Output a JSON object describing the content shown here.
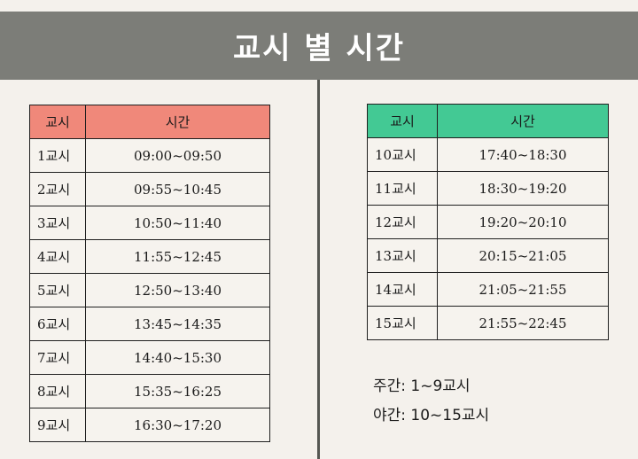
{
  "title": "교시 별 시간",
  "left_table": {
    "headers": [
      "교시",
      "시간"
    ],
    "rows": [
      {
        "period": "1교시",
        "time": "09:00~09:50"
      },
      {
        "period": "2교시",
        "time": "09:55~10:45"
      },
      {
        "period": "3교시",
        "time": "10:50~11:40"
      },
      {
        "period": "4교시",
        "time": "11:55~12:45"
      },
      {
        "period": "5교시",
        "time": "12:50~13:40"
      },
      {
        "period": "6교시",
        "time": "13:45~14:35"
      },
      {
        "period": "7교시",
        "time": "14:40~15:30"
      },
      {
        "period": "8교시",
        "time": "15:35~16:25"
      },
      {
        "period": "9교시",
        "time": "16:30~17:20"
      }
    ]
  },
  "right_table": {
    "headers": [
      "교시",
      "시간"
    ],
    "rows": [
      {
        "period": "10교시",
        "time": "17:40~18:30"
      },
      {
        "period": "11교시",
        "time": "18:30~19:20"
      },
      {
        "period": "12교시",
        "time": "19:20~20:10"
      },
      {
        "period": "13교시",
        "time": "20:15~21:05"
      },
      {
        "period": "14교시",
        "time": "21:05~21:55"
      },
      {
        "period": "15교시",
        "time": "21:55~22:45"
      }
    ]
  },
  "notes": {
    "day": "주간: 1~9교시",
    "night": "야간: 10~15교시"
  },
  "colors": {
    "title_bar": "#7c7d78",
    "left_header": "#f0887a",
    "right_header": "#43c994",
    "background": "#f4f1ec"
  }
}
